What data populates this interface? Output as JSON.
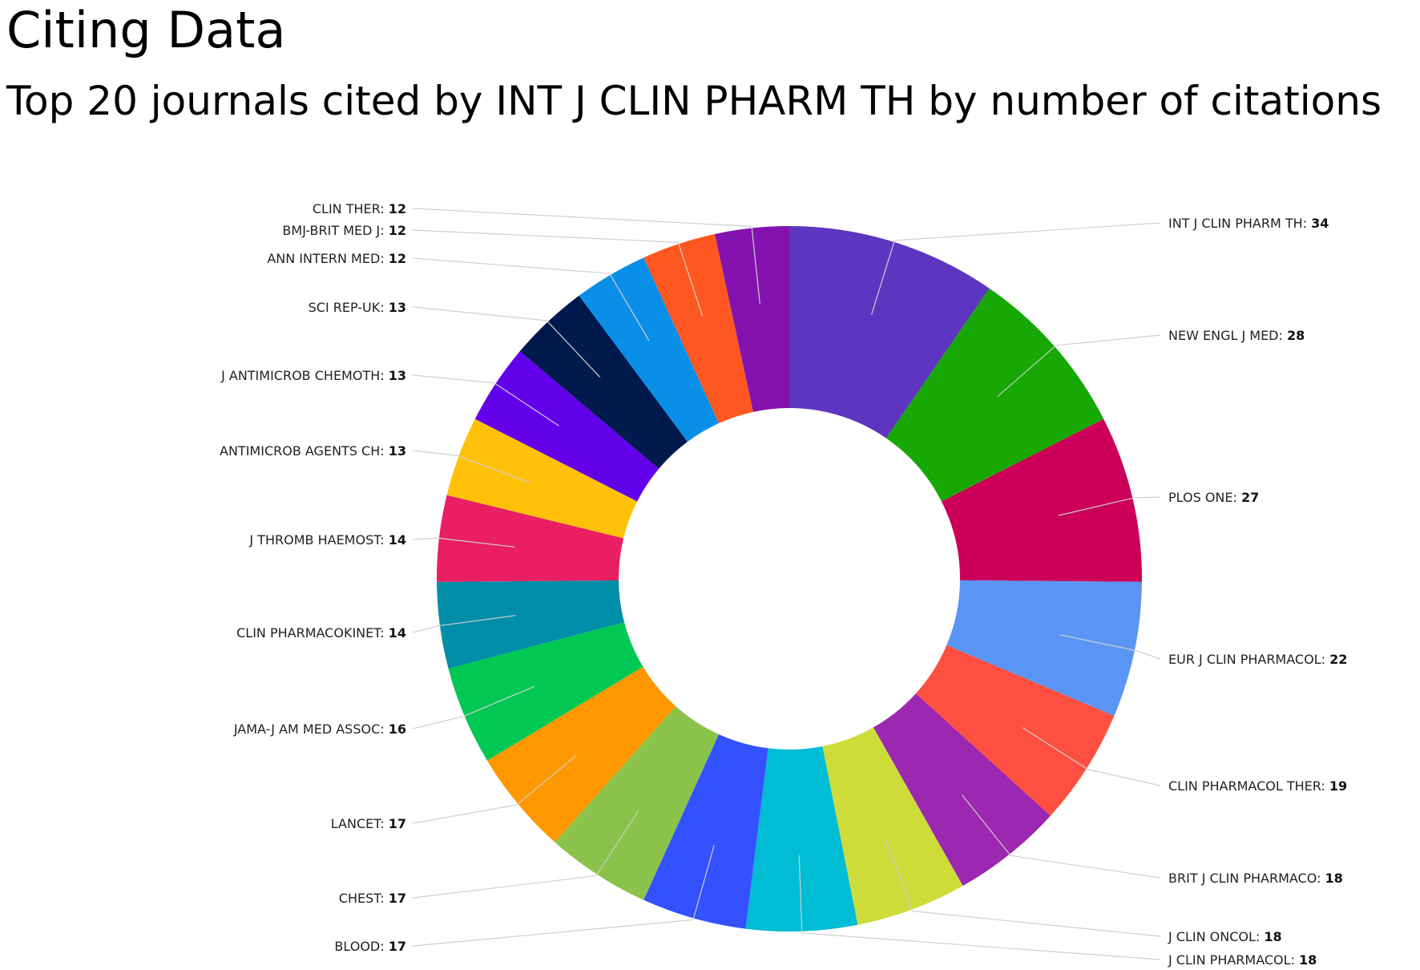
{
  "header": {
    "title": "Citing Data",
    "subtitle": "Top 20 journals cited by INT J CLIN PHARM TH by number of citations"
  },
  "chart_data": {
    "type": "pie",
    "donut": true,
    "title": "Top 20 journals cited by INT J CLIN PHARM TH by number of citations",
    "label_separator": ": ",
    "slices": [
      {
        "name": "INT J CLIN PHARM TH",
        "value": 34,
        "color": "#5e35c1"
      },
      {
        "name": "NEW ENGL J MED",
        "value": 28,
        "color": "#17a805"
      },
      {
        "name": "PLOS ONE",
        "value": 27,
        "color": "#cc0059"
      },
      {
        "name": "EUR J CLIN PHARMACOL",
        "value": 22,
        "color": "#5a95f5"
      },
      {
        "name": "CLIN PHARMACOL THER",
        "value": 19,
        "color": "#ff4f40"
      },
      {
        "name": "BRIT J CLIN PHARMACO",
        "value": 18,
        "color": "#9c27b0"
      },
      {
        "name": "J CLIN ONCOL",
        "value": 18,
        "color": "#cddc39"
      },
      {
        "name": "J CLIN PHARMACOL",
        "value": 18,
        "color": "#00bcd4"
      },
      {
        "name": "BLOOD",
        "value": 17,
        "color": "#3451ff"
      },
      {
        "name": "CHEST",
        "value": 17,
        "color": "#8bc34a"
      },
      {
        "name": "LANCET",
        "value": 17,
        "color": "#ff9800"
      },
      {
        "name": "JAMA-J AM MED ASSOC",
        "value": 16,
        "color": "#00c853"
      },
      {
        "name": "CLIN PHARMACOKINET",
        "value": 14,
        "color": "#008ea8"
      },
      {
        "name": "J THROMB HAEMOST",
        "value": 14,
        "color": "#e91e63"
      },
      {
        "name": "ANTIMICROB AGENTS CH",
        "value": 13,
        "color": "#ffc107"
      },
      {
        "name": "J ANTIMICROB CHEMOTH",
        "value": 13,
        "color": "#6200ea"
      },
      {
        "name": "SCI REP-UK",
        "value": 13,
        "color": "#001a4d"
      },
      {
        "name": "ANN INTERN MED",
        "value": 12,
        "color": "#0a8fe8"
      },
      {
        "name": "BMJ-BRIT MED J",
        "value": 12,
        "color": "#ff5722"
      },
      {
        "name": "CLIN THER",
        "value": 12,
        "color": "#8312ae"
      }
    ]
  }
}
